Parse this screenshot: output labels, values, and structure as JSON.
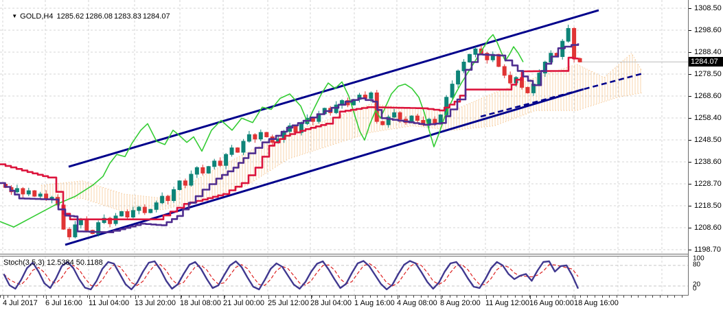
{
  "header": {
    "marker": "▼",
    "symbol": "GOLD,H4",
    "open": "1285.62",
    "high": "1286.08",
    "low": "1283.83",
    "close": "1284.07"
  },
  "price_axis": {
    "current_price": "1284.07",
    "labels": [
      [
        "1308.50",
        12
      ],
      [
        "1298.60",
        44
      ],
      [
        "1288.40",
        76
      ],
      [
        "1278.50",
        108
      ],
      [
        "1268.60",
        140
      ],
      [
        "1258.40",
        172
      ],
      [
        "1248.50",
        204
      ],
      [
        "1238.60",
        236
      ],
      [
        "1228.70",
        268
      ],
      [
        "1218.50",
        300
      ],
      [
        "1208.60",
        332
      ],
      [
        "1198.70",
        364
      ]
    ]
  },
  "time_axis": {
    "labels": [
      [
        "4 Jul 2017",
        4
      ],
      [
        "6 Jul 16:00",
        66
      ],
      [
        "11 Jul 04:00",
        129
      ],
      [
        "13 Jul 20:00",
        196
      ],
      [
        "18 Jul 08:00",
        262
      ],
      [
        "21 Jul 00:00",
        325
      ],
      [
        "25 Jul 12:00",
        390
      ],
      [
        "28 Jul 04:00",
        452
      ],
      [
        "1 Aug 16:00",
        516
      ],
      [
        "4 Aug 08:00",
        578
      ],
      [
        "8 Aug 20:00",
        641
      ],
      [
        "11 Aug 12:00",
        707
      ],
      [
        "16 Aug 00:00",
        771
      ],
      [
        "18 Aug 16:00",
        836
      ]
    ]
  },
  "indicator_panel": {
    "label": "Stoch(3,5,3) 12.5384 50.1188",
    "scale_labels": [
      [
        "100",
        377
      ],
      [
        "80",
        386
      ],
      [
        "20",
        415
      ],
      [
        "0",
        421
      ]
    ],
    "level_lines": [
      80,
      20
    ],
    "main_value": "12.5384",
    "signal_value": "50.1188"
  },
  "chart_data": {
    "type": "candlestick",
    "title": "GOLD,H4",
    "symbol": "GOLD",
    "timeframe": "H4",
    "ylim": [
      1198.7,
      1308.5
    ],
    "x_range": [
      "4 Jul 2017",
      "18 Aug 16:00"
    ],
    "grid": true,
    "first_open": 1228.5,
    "closes": [
      1227,
      1225,
      1226.5,
      1224,
      1225.5,
      1223,
      1224,
      1221.5,
      1222.5,
      1219,
      1208,
      1204.5,
      1210,
      1212.5,
      1207.5,
      1206,
      1211,
      1213,
      1210.5,
      1214,
      1216,
      1213.5,
      1216.5,
      1218,
      1215.5,
      1217,
      1220,
      1223,
      1221,
      1226,
      1230,
      1228,
      1233,
      1236,
      1233.5,
      1236.5,
      1239,
      1237,
      1242,
      1245,
      1243,
      1248,
      1251,
      1249,
      1252,
      1250,
      1247.5,
      1249,
      1252.5,
      1255,
      1252,
      1256,
      1258.5,
      1257,
      1260.5,
      1263,
      1261,
      1264.5,
      1266.5,
      1264.5,
      1267,
      1269,
      1267.5,
      1270,
      1257,
      1255.5,
      1259,
      1261,
      1258,
      1256.5,
      1259.5,
      1257.5,
      1255.5,
      1258,
      1256,
      1260,
      1268,
      1274,
      1280,
      1284,
      1287.5,
      1290,
      1288,
      1285,
      1287.5,
      1282,
      1278,
      1274.5,
      1277,
      1272.5,
      1270,
      1274,
      1279,
      1284,
      1288,
      1286.5,
      1293.5,
      1299.3,
      1285.5,
      1284.07
    ],
    "last_candle": {
      "open": 1285.62,
      "high": 1286.08,
      "low": 1283.83,
      "close": 1284.07
    },
    "overlays": {
      "chikou": [
        [
          0,
          1211.5
        ],
        [
          20,
          1209
        ],
        [
          50,
          1214
        ],
        [
          80,
          1219
        ],
        [
          110,
          1223
        ],
        [
          135,
          1228
        ],
        [
          150,
          1232
        ],
        [
          160,
          1238
        ],
        [
          170,
          1242
        ],
        [
          182,
          1241
        ],
        [
          192,
          1247
        ],
        [
          205,
          1253
        ],
        [
          215,
          1256
        ],
        [
          228,
          1248
        ],
        [
          240,
          1246.5
        ],
        [
          252,
          1253
        ],
        [
          260,
          1251
        ],
        [
          272,
          1247.5
        ],
        [
          282,
          1250
        ],
        [
          294,
          1243.5
        ],
        [
          308,
          1253
        ],
        [
          322,
          1257.5
        ],
        [
          338,
          1253
        ],
        [
          352,
          1258.5
        ],
        [
          368,
          1256.5
        ],
        [
          382,
          1263.5
        ],
        [
          395,
          1262.5
        ],
        [
          408,
          1267.5
        ],
        [
          422,
          1269.5
        ],
        [
          438,
          1264
        ],
        [
          448,
          1256.5
        ],
        [
          456,
          1262
        ],
        [
          468,
          1269.5
        ],
        [
          478,
          1274.5
        ],
        [
          488,
          1272
        ],
        [
          498,
          1275
        ],
        [
          508,
          1268.5
        ],
        [
          516,
          1260.5
        ],
        [
          524,
          1252.5
        ],
        [
          531,
          1248.5
        ],
        [
          539,
          1256
        ],
        [
          547,
          1262
        ],
        [
          554,
          1258.5
        ],
        [
          562,
          1264
        ],
        [
          570,
          1269.5
        ],
        [
          580,
          1273
        ],
        [
          590,
          1274
        ],
        [
          600,
          1272
        ],
        [
          610,
          1268
        ],
        [
          618,
          1261
        ],
        [
          625,
          1253
        ],
        [
          632,
          1245.5
        ],
        [
          640,
          1252
        ],
        [
          648,
          1259.5
        ],
        [
          656,
          1265
        ],
        [
          664,
          1270
        ],
        [
          672,
          1274.5
        ],
        [
          680,
          1278.5
        ],
        [
          688,
          1282.5
        ],
        [
          696,
          1286.5
        ],
        [
          704,
          1290.5
        ],
        [
          712,
          1294.5
        ],
        [
          718,
          1296.5
        ],
        [
          724,
          1293
        ],
        [
          730,
          1288.5
        ],
        [
          736,
          1284.5
        ],
        [
          742,
          1287.5
        ],
        [
          748,
          1291
        ],
        [
          755,
          1288
        ],
        [
          762,
          1284
        ]
      ],
      "tenkan": [
        [
          0,
          1229
        ],
        [
          15,
          1225.5
        ],
        [
          28,
          1222
        ],
        [
          75,
          1221.5
        ],
        [
          85,
          1217
        ],
        [
          95,
          1214.2
        ],
        [
          108,
          1213.8
        ],
        [
          113,
          1207
        ],
        [
          155,
          1206.6
        ],
        [
          175,
          1208
        ],
        [
          205,
          1210.5
        ],
        [
          235,
          1209.8
        ],
        [
          258,
          1214
        ],
        [
          275,
          1220
        ],
        [
          295,
          1226
        ],
        [
          315,
          1231
        ],
        [
          340,
          1236
        ],
        [
          362,
          1242.5
        ],
        [
          382,
          1247.5
        ],
        [
          402,
          1250.5
        ],
        [
          418,
          1254.2
        ],
        [
          442,
          1257.3
        ],
        [
          462,
          1260.3
        ],
        [
          483,
          1263.2
        ],
        [
          503,
          1266
        ],
        [
          522,
          1267.5
        ],
        [
          543,
          1266
        ],
        [
          556,
          1258.5
        ],
        [
          588,
          1257
        ],
        [
          618,
          1255.5
        ],
        [
          643,
          1256.3
        ],
        [
          656,
          1262.5
        ],
        [
          666,
          1267
        ],
        [
          678,
          1280.5
        ],
        [
          696,
          1287.5
        ],
        [
          726,
          1287
        ],
        [
          746,
          1282.5
        ],
        [
          762,
          1277.5
        ],
        [
          776,
          1273.5
        ],
        [
          788,
          1280
        ],
        [
          803,
          1286.5
        ],
        [
          813,
          1290.3
        ],
        [
          842,
          1292.5
        ]
      ],
      "kijun": [
        [
          0,
          1237.5
        ],
        [
          40,
          1234
        ],
        [
          70,
          1231.5
        ],
        [
          82,
          1225
        ],
        [
          92,
          1215
        ],
        [
          102,
          1212.5
        ],
        [
          228,
          1212.5
        ],
        [
          248,
          1216
        ],
        [
          268,
          1219.5
        ],
        [
          295,
          1221.5
        ],
        [
          325,
          1224
        ],
        [
          352,
          1229
        ],
        [
          372,
          1236
        ],
        [
          392,
          1246
        ],
        [
          415,
          1250.5
        ],
        [
          445,
          1253.5
        ],
        [
          475,
          1256
        ],
        [
          495,
          1261.5
        ],
        [
          535,
          1263.5
        ],
        [
          615,
          1263
        ],
        [
          640,
          1262
        ],
        [
          662,
          1266
        ],
        [
          678,
          1271.5
        ],
        [
          738,
          1271.5
        ],
        [
          752,
          1276
        ],
        [
          760,
          1279.8
        ],
        [
          818,
          1280
        ],
        [
          828,
          1286
        ],
        [
          842,
          1285.3
        ]
      ],
      "cloud_span_a": [
        [
          60,
          1228
        ],
        [
          120,
          1230
        ],
        [
          180,
          1224
        ],
        [
          240,
          1222
        ],
        [
          300,
          1233
        ],
        [
          360,
          1243
        ],
        [
          420,
          1252
        ],
        [
          480,
          1258
        ],
        [
          540,
          1265
        ],
        [
          600,
          1263
        ],
        [
          660,
          1262
        ],
        [
          720,
          1270
        ],
        [
          780,
          1277
        ],
        [
          840,
          1283
        ],
        [
          880,
          1277
        ],
        [
          905,
          1284
        ],
        [
          920,
          1288
        ],
        [
          935,
          1280
        ]
      ],
      "cloud_span_b": [
        [
          60,
          1222
        ],
        [
          120,
          1222
        ],
        [
          180,
          1216
        ],
        [
          240,
          1217
        ],
        [
          300,
          1222
        ],
        [
          360,
          1228
        ],
        [
          420,
          1240
        ],
        [
          480,
          1246
        ],
        [
          540,
          1252
        ],
        [
          600,
          1255
        ],
        [
          660,
          1253
        ],
        [
          720,
          1255
        ],
        [
          780,
          1262
        ],
        [
          840,
          1262
        ],
        [
          900,
          1268
        ],
        [
          935,
          1270
        ]
      ]
    },
    "trendlines": {
      "upper_channel": [
        [
          100,
          1236.4
        ],
        [
          872,
          1307.6
        ]
      ],
      "lower_channel": [
        [
          95,
          1200.9
        ],
        [
          850,
          1271.7
        ]
      ],
      "lower_channel_dashed": [
        [
          700,
          1259.2
        ],
        [
          937,
          1278.9
        ]
      ]
    },
    "bid_line": {
      "price": 1284.07,
      "x_start": 846
    },
    "stochastic": {
      "k_values": [
        55,
        22,
        12,
        38,
        72,
        88,
        62,
        28,
        14,
        42,
        78,
        90,
        72,
        40,
        15,
        10,
        35,
        70,
        90,
        85,
        55,
        25,
        10,
        30,
        62,
        88,
        92,
        68,
        35,
        12,
        25,
        55,
        82,
        90,
        70,
        40,
        14,
        22,
        52,
        80,
        92,
        75,
        45,
        18,
        10,
        38,
        70,
        86,
        76,
        50,
        24,
        12,
        32,
        62,
        85,
        92,
        68,
        40,
        14,
        26,
        58,
        86,
        93,
        78,
        52,
        26,
        10,
        24,
        55,
        82,
        93,
        86,
        60,
        32,
        12,
        30,
        62,
        86,
        90,
        70,
        42,
        18,
        14,
        40,
        72,
        90,
        80,
        55,
        40,
        50,
        55,
        35,
        65,
        90,
        92,
        62,
        78,
        80,
        50,
        12.5
      ],
      "current_k": 12.5384,
      "current_d": 50.1188,
      "range": [
        0,
        100
      ]
    }
  },
  "colors": {
    "bull": "#0e8478",
    "bear": "#e03535",
    "chikou": "#33cc33",
    "tenkan": "#4f2d8f",
    "kijun": "#dc143c",
    "channel": "#00008b",
    "cloud": "#f2b36a",
    "grid": "#d4d4d4",
    "bid_line": "#b9b9b9",
    "stoch_main": "#40388f",
    "stoch_signal": "#dd2020",
    "badge_bg": "#000000",
    "badge_fg": "#ffffff",
    "axis_text": "#000000"
  }
}
